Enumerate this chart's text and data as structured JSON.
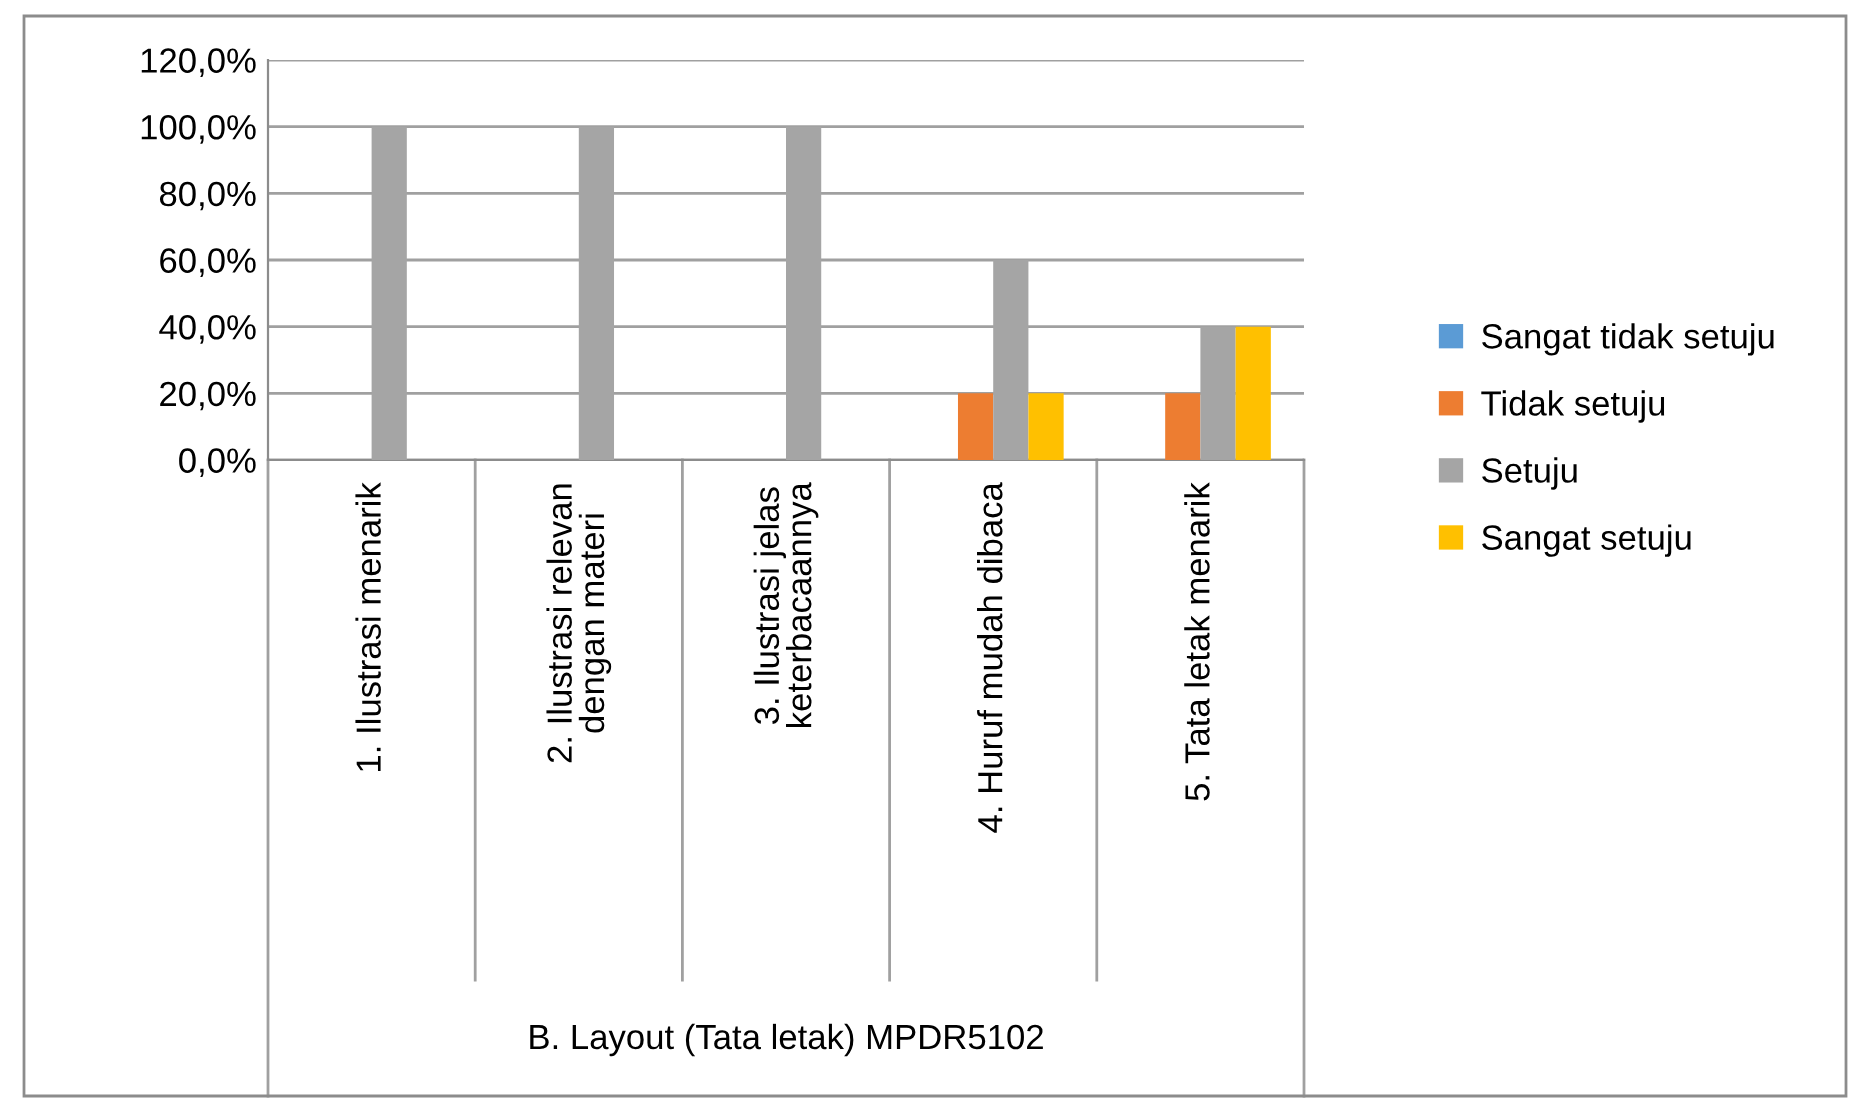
{
  "chart_data": {
    "type": "bar",
    "categories": [
      "1. Ilustrasi menarik",
      "2. Ilustrasi relevan\ndengan materi",
      "3. Ilustrasi jelas\nketerbacaannya",
      "4. Huruf mudah dibaca",
      "5. Tata letak menarik"
    ],
    "annotations": [
      "B. Layout (Tata letak) MPDR5102"
    ],
    "series": [
      {
        "name": "Sangat tidak setuju",
        "color": "#5b9bd5",
        "values": [
          0,
          0,
          0,
          0,
          0
        ]
      },
      {
        "name": "Tidak setuju",
        "color": "#ed7d31",
        "values": [
          0,
          0,
          0,
          20,
          20
        ]
      },
      {
        "name": "Setuju",
        "color": "#a5a5a5",
        "values": [
          100,
          100,
          100,
          60,
          40
        ]
      },
      {
        "name": "Sangat setuju",
        "color": "#ffc000",
        "values": [
          0,
          0,
          0,
          20,
          40
        ]
      }
    ],
    "ylim": [
      0,
      120
    ],
    "yticks": [
      {
        "value": 0,
        "label": "0,0%"
      },
      {
        "value": 20,
        "label": "20,0%"
      },
      {
        "value": 40,
        "label": "40,0%"
      },
      {
        "value": 60,
        "label": "60,0%"
      },
      {
        "value": 80,
        "label": "80,0%"
      },
      {
        "value": 100,
        "label": "100,0%"
      },
      {
        "value": 120,
        "label": "120,0%"
      }
    ],
    "grid": "y",
    "legend": "right"
  }
}
